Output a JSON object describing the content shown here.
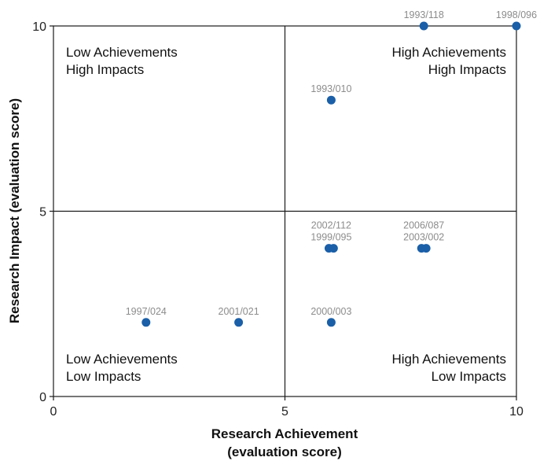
{
  "chart_data": {
    "type": "scatter",
    "title": "",
    "xlabel": [
      "Research Achievement",
      "(evaluation score)"
    ],
    "ylabel": "Research Impact (evaluation score)",
    "xlim": [
      0,
      10
    ],
    "ylim": [
      0,
      10
    ],
    "x_ticks": [
      "0",
      "5",
      "10"
    ],
    "y_ticks": [
      "0",
      "5",
      "10"
    ],
    "grid": false,
    "dividers": [
      5,
      5
    ],
    "point_color": "#1a5fa8",
    "label_color": "#8c8c8c",
    "quadrants": {
      "top_left": [
        "Low Achievements",
        "High Impacts"
      ],
      "top_right": [
        "High Achievements",
        "High Impacts"
      ],
      "bottom_left": [
        "Low Achievements",
        "Low Impacts"
      ],
      "bottom_right": [
        "High Achievements",
        "Low Impacts"
      ]
    },
    "points": [
      {
        "label": "1993/118",
        "x": 8,
        "y": 10
      },
      {
        "label": "1998/096",
        "x": 10,
        "y": 10
      },
      {
        "label": "1993/010",
        "x": 6,
        "y": 8
      },
      {
        "label": "1999/095",
        "x": 5.95,
        "y": 4
      },
      {
        "label": "2002/112",
        "x": 6.05,
        "y": 4
      },
      {
        "label": "2003/002",
        "x": 7.95,
        "y": 4
      },
      {
        "label": "2006/087",
        "x": 8.05,
        "y": 4
      },
      {
        "label": "1997/024",
        "x": 2,
        "y": 2
      },
      {
        "label": "2001/021",
        "x": 4,
        "y": 2
      },
      {
        "label": "2000/003",
        "x": 6,
        "y": 2
      }
    ],
    "point_labels": [
      {
        "lines": [
          "1993/118"
        ],
        "x": 8,
        "y": 10
      },
      {
        "lines": [
          "1998/096"
        ],
        "x": 10,
        "y": 10
      },
      {
        "lines": [
          "1993/010"
        ],
        "x": 6,
        "y": 8
      },
      {
        "lines": [
          "2002/112",
          "1999/095"
        ],
        "x": 6,
        "y": 4
      },
      {
        "lines": [
          "2006/087",
          "2003/002"
        ],
        "x": 8,
        "y": 4
      },
      {
        "lines": [
          "1997/024"
        ],
        "x": 2,
        "y": 2
      },
      {
        "lines": [
          "2001/021"
        ],
        "x": 4,
        "y": 2
      },
      {
        "lines": [
          "2000/003"
        ],
        "x": 6,
        "y": 2
      }
    ]
  }
}
